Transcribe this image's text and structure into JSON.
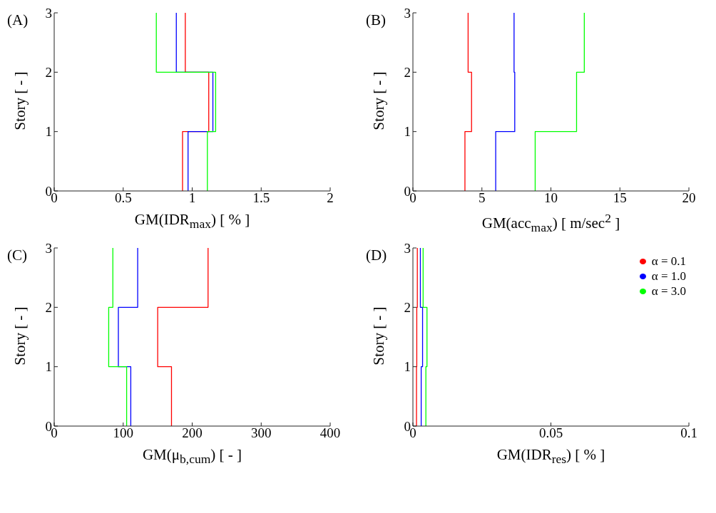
{
  "chart_data": [
    {
      "type": "line",
      "title": "(A)",
      "xlabel": "GM(IDR$_{max}$) [ % ]",
      "ylabel": "Story [ - ]",
      "xlim": [
        0,
        2
      ],
      "xticks": [
        0,
        0.5,
        1,
        1.5,
        2
      ],
      "ylim": [
        0,
        3
      ],
      "yticks": [
        0,
        1,
        2,
        3
      ],
      "grid": false,
      "marker": "none",
      "line_style": "solid",
      "legend": false,
      "series": [
        {
          "color": "#ff0000",
          "x": [
            0.93,
            0.93,
            1.12,
            1.12,
            0.95,
            0.95
          ],
          "values": [
            0,
            1,
            1,
            2,
            2,
            3
          ]
        },
        {
          "color": "#0000ff",
          "x": [
            0.97,
            0.97,
            1.15,
            1.15,
            0.885,
            0.885
          ],
          "values": [
            0,
            1,
            1,
            2,
            2,
            3
          ]
        },
        {
          "color": "#00ff00",
          "x": [
            1.11,
            1.11,
            1.17,
            1.17,
            0.74,
            0.74
          ],
          "values": [
            0,
            1,
            1,
            2,
            2,
            3
          ]
        }
      ]
    },
    {
      "type": "line",
      "title": "(B)",
      "xlabel": "GM(acc$_{max}$) [ m/sec$^{2}$ ]",
      "ylabel": "Story [ - ]",
      "xlim": [
        0,
        20
      ],
      "xticks": [
        0,
        5,
        10,
        15,
        20
      ],
      "ylim": [
        0,
        3
      ],
      "yticks": [
        0,
        1,
        2,
        3
      ],
      "grid": false,
      "marker": "none",
      "line_style": "solid",
      "legend": false,
      "series": [
        {
          "color": "#ff0000",
          "x": [
            3.77,
            3.77,
            4.25,
            4.25,
            4.0,
            4.0
          ],
          "values": [
            0,
            1,
            1,
            2,
            2,
            3
          ]
        },
        {
          "color": "#0000ff",
          "x": [
            6.0,
            6.0,
            7.38,
            7.38,
            7.33,
            7.33
          ],
          "values": [
            0,
            1,
            1,
            2,
            2,
            3
          ]
        },
        {
          "color": "#00ff00",
          "x": [
            8.86,
            8.86,
            11.86,
            11.86,
            12.42,
            12.42
          ],
          "values": [
            0,
            1,
            1,
            2,
            2,
            3
          ]
        }
      ]
    },
    {
      "type": "line",
      "title": "(C)",
      "xlabel": "GM(μ$_{b,cum}$) [ - ]",
      "ylabel": "Story [ - ]",
      "xlim": [
        0,
        400
      ],
      "xticks": [
        0,
        100,
        200,
        300,
        400
      ],
      "ylim": [
        0,
        3
      ],
      "yticks": [
        0,
        1,
        2,
        3
      ],
      "grid": false,
      "marker": "none",
      "line_style": "solid",
      "legend": false,
      "series": [
        {
          "color": "#ff0000",
          "x": [
            170,
            170,
            150,
            150,
            223,
            223
          ],
          "values": [
            0,
            1,
            1,
            2,
            2,
            3
          ]
        },
        {
          "color": "#0000ff",
          "x": [
            111,
            111,
            93,
            93,
            121,
            121
          ],
          "values": [
            0,
            1,
            1,
            2,
            2,
            3
          ]
        },
        {
          "color": "#00ff00",
          "x": [
            105,
            105,
            79,
            79,
            85,
            85
          ],
          "values": [
            0,
            1,
            1,
            2,
            2,
            3
          ]
        }
      ]
    },
    {
      "type": "line",
      "title": "(D)",
      "xlabel": "GM(IDR$_{res}$) [ % ]",
      "ylabel": "Story [ - ]",
      "xlim": [
        0,
        0.1
      ],
      "xticks": [
        0,
        0.05,
        0.1
      ],
      "ylim": [
        0,
        3
      ],
      "yticks": [
        0,
        1,
        2,
        3
      ],
      "grid": false,
      "marker": "none",
      "line_style": "solid",
      "legend": "top right",
      "series": [
        {
          "name": "α = 0.1",
          "color": "#ff0000",
          "x": [
            0.0013,
            0.0013,
            0.0014,
            0.0014,
            0.0016,
            0.0016
          ],
          "values": [
            0,
            1,
            1,
            2,
            2,
            3
          ]
        },
        {
          "name": "α = 1.0",
          "color": "#0000ff",
          "x": [
            0.003,
            0.003,
            0.0035,
            0.0035,
            0.0027,
            0.0027
          ],
          "values": [
            0,
            1,
            1,
            2,
            2,
            3
          ]
        },
        {
          "name": "α = 3.0",
          "color": "#00ff00",
          "x": [
            0.0047,
            0.0047,
            0.0051,
            0.0051,
            0.0037,
            0.0037
          ],
          "values": [
            0,
            1,
            1,
            2,
            2,
            3
          ]
        }
      ]
    }
  ]
}
